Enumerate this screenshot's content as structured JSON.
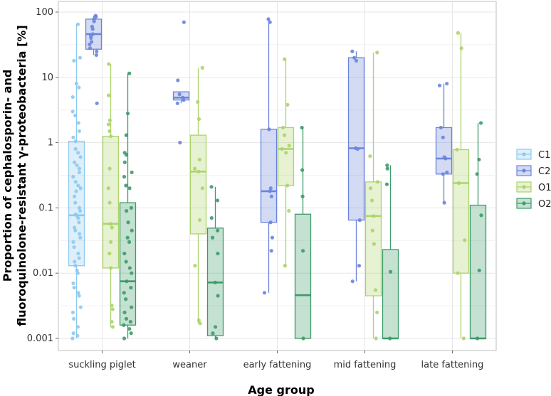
{
  "chart_data": {
    "type": "box",
    "title": "",
    "xlabel": "Age group",
    "ylabel_lines": [
      "Proportion of cephalosporin- and",
      "fluoroquinolone-resistant γ-proteobacteria [%]"
    ],
    "yscale": "log10",
    "ylim": [
      0.001,
      100
    ],
    "yticks": [
      0.001,
      0.01,
      0.1,
      1,
      10,
      100
    ],
    "ytick_labels": [
      "0.001",
      "0.01",
      "0.1",
      "1",
      "10",
      "100"
    ],
    "categories": [
      "suckling piglet",
      "weaner",
      "early fattening",
      "mid fattening",
      "late fattening"
    ],
    "legend": {
      "position": "right",
      "entries": [
        "C1",
        "C2",
        "O1",
        "O2"
      ]
    },
    "series": [
      {
        "name": "C1",
        "color": "#8ec9ee",
        "boxes": [
          {
            "category": "suckling piglet",
            "whisker_low": 0.001,
            "q1": 0.013,
            "median": 0.077,
            "q3": 1.05,
            "whisker_high": 65,
            "points": [
              65,
              20,
              18,
              8,
              7,
              5,
              3,
              2.6,
              2,
              1.5,
              1.2,
              1.05,
              0.8,
              0.7,
              0.6,
              0.5,
              0.45,
              0.4,
              0.35,
              0.3,
              0.25,
              0.22,
              0.2,
              0.18,
              0.15,
              0.12,
              0.1,
              0.09,
              0.08,
              0.077,
              0.07,
              0.06,
              0.05,
              0.045,
              0.04,
              0.035,
              0.03,
              0.025,
              0.02,
              0.017,
              0.015,
              0.013,
              0.011,
              0.01,
              0.007,
              0.006,
              0.005,
              0.0045,
              0.003,
              0.0025,
              0.002,
              0.0015,
              0.0012,
              0.0011,
              0.001
            ]
          }
        ]
      },
      {
        "name": "C2",
        "color": "#6b84dc",
        "boxes": [
          {
            "category": "suckling piglet",
            "whisker_low": 22,
            "q1": 27,
            "median": 46,
            "q3": 78,
            "whisker_high": 88,
            "points": [
              88,
              85,
              78,
              72,
              60,
              55,
              46,
              43,
              40,
              35,
              32,
              28,
              25,
              22,
              4
            ]
          },
          {
            "category": "weaner",
            "whisker_low": 4,
            "q1": 4.5,
            "median": 4.9,
            "q3": 6,
            "whisker_high": 6,
            "points": [
              70,
              9,
              5.5,
              4.9,
              4.5,
              4,
              1
            ]
          },
          {
            "category": "early fattening",
            "whisker_low": 0.005,
            "q1": 0.06,
            "median": 0.18,
            "q3": 1.6,
            "whisker_high": 78,
            "points": [
              78,
              70,
              1.6,
              0.2,
              0.18,
              0.15,
              0.06,
              0.035,
              0.022,
              0.005
            ]
          },
          {
            "category": "mid fattening",
            "whisker_low": 0.0075,
            "q1": 0.065,
            "median": 0.82,
            "q3": 20,
            "whisker_high": 25,
            "points": [
              25,
              20,
              18,
              0.82,
              0.8,
              0.065,
              0.013,
              0.0075
            ]
          },
          {
            "category": "late fattening",
            "whisker_low": 0.12,
            "q1": 0.33,
            "median": 0.57,
            "q3": 1.7,
            "whisker_high": 8,
            "points": [
              8,
              7.5,
              1.7,
              1.2,
              0.6,
              0.57,
              0.35,
              0.33,
              0.12
            ]
          }
        ]
      },
      {
        "name": "O1",
        "color": "#acd46a",
        "boxes": [
          {
            "category": "suckling piglet",
            "whisker_low": 0.0015,
            "q1": 0.012,
            "median": 0.057,
            "q3": 1.25,
            "whisker_high": 16,
            "points": [
              16,
              5.3,
              2.2,
              1.9,
              1.5,
              1.25,
              0.4,
              0.2,
              0.12,
              0.057,
              0.05,
              0.03,
              0.02,
              0.012,
              0.0032,
              0.0028,
              0.0018,
              0.0015
            ]
          },
          {
            "category": "weaner",
            "whisker_low": 0.0017,
            "q1": 0.04,
            "median": 0.36,
            "q3": 1.3,
            "whisker_high": 14,
            "points": [
              14,
              4.2,
              2.3,
              0.55,
              0.4,
              0.36,
              0.2,
              0.065,
              0.013,
              0.0019,
              0.0017
            ]
          },
          {
            "category": "early fattening",
            "whisker_low": 0.013,
            "q1": 0.22,
            "median": 0.8,
            "q3": 1.7,
            "whisker_high": 19,
            "points": [
              19,
              3.8,
              1.7,
              1.3,
              0.9,
              0.8,
              0.7,
              0.22,
              0.09,
              0.013
            ]
          },
          {
            "category": "mid fattening",
            "whisker_low": 0.001,
            "q1": 0.0045,
            "median": 0.075,
            "q3": 0.25,
            "whisker_high": 24,
            "points": [
              24,
              0.62,
              0.25,
              0.2,
              0.13,
              0.075,
              0.045,
              0.028,
              0.0055,
              0.0025,
              0.001
            ]
          },
          {
            "category": "late fattening",
            "whisker_low": 0.001,
            "q1": 0.01,
            "median": 0.24,
            "q3": 0.78,
            "whisker_high": 48,
            "points": [
              48,
              28,
              0.78,
              0.24,
              0.032,
              0.01,
              0.001
            ]
          }
        ]
      },
      {
        "name": "O2",
        "color": "#3d9b6a",
        "boxes": [
          {
            "category": "suckling piglet",
            "whisker_low": 0.001,
            "q1": 0.0016,
            "median": 0.0075,
            "q3": 0.12,
            "whisker_high": 11.5,
            "points": [
              11.5,
              2.8,
              1.3,
              0.7,
              0.65,
              0.5,
              0.35,
              0.3,
              0.22,
              0.2,
              0.1,
              0.09,
              0.06,
              0.045,
              0.035,
              0.03,
              0.02,
              0.015,
              0.012,
              0.01,
              0.0075,
              0.006,
              0.005,
              0.004,
              0.003,
              0.0025,
              0.002,
              0.0018,
              0.0016,
              0.0014,
              0.0012,
              0.001
            ]
          },
          {
            "category": "weaner",
            "whisker_low": 0.001,
            "q1": 0.0011,
            "median": 0.0072,
            "q3": 0.049,
            "whisker_high": 0.21,
            "points": [
              0.21,
              0.13,
              0.07,
              0.045,
              0.035,
              0.02,
              0.0072,
              0.0045,
              0.0015,
              0.0012,
              0.001
            ]
          },
          {
            "category": "early fattening",
            "whisker_low": 0.001,
            "q1": 0.001,
            "median": 0.0046,
            "q3": 0.08,
            "whisker_high": 1.7,
            "points": [
              1.7,
              0.38,
              0.15,
              0.022,
              0.001
            ]
          },
          {
            "category": "mid fattening",
            "whisker_low": 0.001,
            "q1": 0.001,
            "median": 0.001,
            "q3": 0.023,
            "whisker_high": 0.45,
            "points": [
              0.45,
              0.4,
              0.23,
              0.0105,
              0.001
            ]
          },
          {
            "category": "late fattening",
            "whisker_low": 0.001,
            "q1": 0.001,
            "median": 0.001,
            "q3": 0.11,
            "whisker_high": 2,
            "points": [
              2,
              0.55,
              0.33,
              0.077,
              0.011,
              0.001
            ]
          }
        ]
      }
    ]
  }
}
